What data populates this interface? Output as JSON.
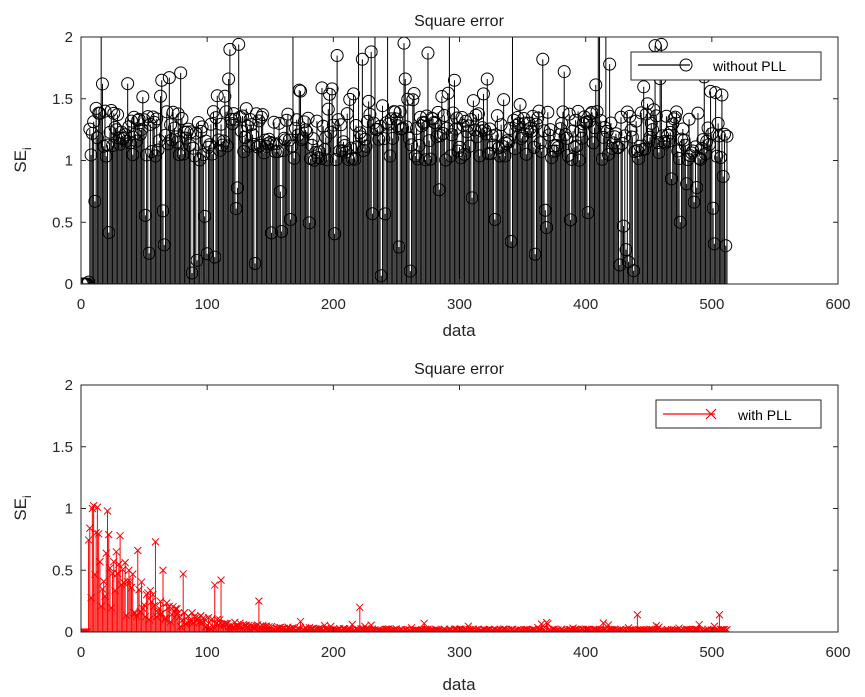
{
  "chart_data": [
    {
      "type": "stem",
      "title": "Square error",
      "xlabel": "data",
      "ylabel_base": "SE",
      "ylabel_sub": "i",
      "xlim": [
        0,
        600
      ],
      "ylim": [
        0,
        2
      ],
      "xticks": [
        "0",
        "100",
        "200",
        "300",
        "400",
        "500",
        "600"
      ],
      "yticks": [
        "0",
        "0.5",
        "1",
        "1.5",
        "2"
      ],
      "grid": false,
      "legend_position": "top-right",
      "series": [
        {
          "name": "without PLL",
          "color": "#000000",
          "marker": "circle",
          "n_points": 512,
          "initial_zero_points": 5,
          "typical_range": [
            1.0,
            1.4
          ],
          "max": 1.95,
          "clipped_at_top": true,
          "sample_peaks": [
            {
              "x": 16,
              "y": 1.62
            },
            {
              "x": 18,
              "y": 1.4
            },
            {
              "x": 63,
              "y": 1.65
            },
            {
              "x": 62,
              "y": 1.52
            },
            {
              "x": 78,
              "y": 1.71
            },
            {
              "x": 113,
              "y": 1.52
            },
            {
              "x": 116,
              "y": 1.66
            },
            {
              "x": 117,
              "y": 1.9
            },
            {
              "x": 124,
              "y": 1.94
            },
            {
              "x": 130,
              "y": 1.42
            },
            {
              "x": 172,
              "y": 1.57
            },
            {
              "x": 198,
              "y": 1.58
            },
            {
              "x": 202,
              "y": 1.85
            },
            {
              "x": 222,
              "y": 1.82
            },
            {
              "x": 229,
              "y": 1.88
            },
            {
              "x": 255,
              "y": 1.95
            },
            {
              "x": 256,
              "y": 1.66
            },
            {
              "x": 274,
              "y": 1.87
            },
            {
              "x": 295,
              "y": 1.65
            },
            {
              "x": 321,
              "y": 1.66
            },
            {
              "x": 365,
              "y": 1.82
            },
            {
              "x": 382,
              "y": 1.72
            },
            {
              "x": 418,
              "y": 1.78
            },
            {
              "x": 454,
              "y": 1.93
            },
            {
              "x": 459,
              "y": 1.94
            },
            {
              "x": 498,
              "y": 1.56
            },
            {
              "x": 502,
              "y": 1.55
            },
            {
              "x": 507,
              "y": 1.53
            },
            {
              "x": 510,
              "y": 0.31
            }
          ]
        }
      ]
    },
    {
      "type": "stem",
      "title": "Square error",
      "xlabel": "data",
      "ylabel_base": "SE",
      "ylabel_sub": "i",
      "xlim": [
        0,
        600
      ],
      "ylim": [
        0,
        2
      ],
      "xticks": [
        "0",
        "100",
        "200",
        "300",
        "400",
        "500",
        "600"
      ],
      "yticks": [
        "0",
        "0.5",
        "1",
        "1.5",
        "2"
      ],
      "grid": false,
      "legend_position": "top-right",
      "series": [
        {
          "name": "with PLL",
          "color": "#ff0000",
          "marker": "x",
          "n_points": 512,
          "initial_zero_points": 5,
          "trend": "decays from about 1.0 near x=10 to about 0.02-0.1 after x=200",
          "sample_peaks": [
            {
              "x": 8,
              "y": 1.0
            },
            {
              "x": 12,
              "y": 1.01
            },
            {
              "x": 20,
              "y": 0.98
            },
            {
              "x": 30,
              "y": 0.78
            },
            {
              "x": 44,
              "y": 0.66
            },
            {
              "x": 58,
              "y": 0.73
            },
            {
              "x": 64,
              "y": 0.5
            },
            {
              "x": 80,
              "y": 0.47
            },
            {
              "x": 105,
              "y": 0.38
            },
            {
              "x": 110,
              "y": 0.42
            },
            {
              "x": 140,
              "y": 0.25
            },
            {
              "x": 220,
              "y": 0.2
            },
            {
              "x": 440,
              "y": 0.14
            },
            {
              "x": 505,
              "y": 0.14
            }
          ]
        }
      ]
    }
  ]
}
